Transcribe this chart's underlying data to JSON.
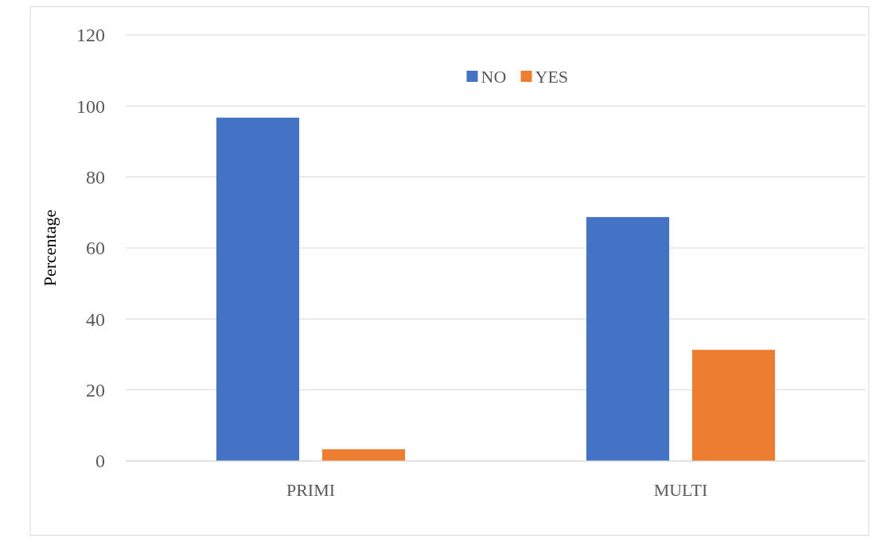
{
  "chart_data": {
    "type": "bar",
    "ylabel": "Percentage",
    "categories": [
      "PRIMI",
      "MULTI"
    ],
    "series": [
      {
        "name": "NO",
        "color": "#4472c4",
        "values": [
          96.7,
          68.7
        ]
      },
      {
        "name": "YES",
        "color": "#ed7d31",
        "values": [
          3.3,
          31.3
        ]
      }
    ],
    "ylim": [
      0,
      120
    ],
    "yticks": [
      0,
      20,
      40,
      60,
      80,
      100,
      120
    ],
    "grid": "y",
    "legend": "top"
  }
}
